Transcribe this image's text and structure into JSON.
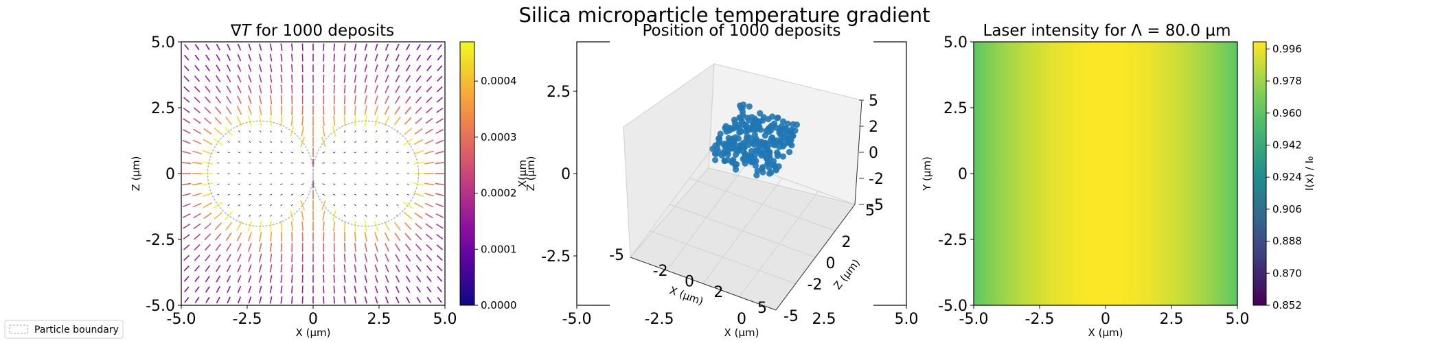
{
  "figure": {
    "title": "Silica microparticle temperature gradient",
    "legend": {
      "label": "Particle boundary",
      "placement": "lower-left"
    }
  },
  "chart_data": [
    {
      "type": "quiver",
      "title_prefix": "∇",
      "title_italic": "T",
      "title_suffix": " for 1000 deposits",
      "xlabel": "X (µm)",
      "ylabel": "Z (µm)",
      "xlim": [
        -5,
        5
      ],
      "ylim": [
        -5,
        5
      ],
      "x_ticks": [
        "-5.0",
        "-2.5",
        "0",
        "2.5",
        "5.0"
      ],
      "y_ticks": [
        "-5.0",
        "-2.5",
        "0",
        "2.5",
        "5.0"
      ],
      "particles": [
        {
          "center": [
            -2.0,
            0.0
          ],
          "radius": 2.0
        },
        {
          "center": [
            2.0,
            0.0
          ],
          "radius": 2.0
        }
      ],
      "grid_n": 25,
      "colormap": "plasma",
      "colorbar": {
        "range": [
          0.0,
          0.00047
        ],
        "ticks": [
          "0.0000",
          "0.0001",
          "0.0002",
          "0.0003",
          "0.0004"
        ]
      }
    },
    {
      "type": "scatter3d",
      "title": "Position of 1000 deposits",
      "outer_xlabel": "X (µm)",
      "outer_ylabel_a": "Z (µm)",
      "outer_ylabel_b": "X(µm",
      "outer_xlim": [
        -5,
        5
      ],
      "outer_ylim": [
        -4,
        4
      ],
      "outer_x_ticks": [
        "-5.0",
        "-2.5",
        "0",
        "2.5",
        "5.0"
      ],
      "outer_y_ticks": [
        "2.5",
        "0",
        "-2.5"
      ],
      "x_label_3d": "X (µm)",
      "z_label_3d": "Z (µm)",
      "x_ticks_3d": [
        "-5",
        "-2",
        "0",
        "2",
        "5"
      ],
      "z_ticks_3d": [
        "5",
        "2",
        "0",
        "-2",
        "-5"
      ],
      "v_ticks_3d": [
        "5",
        "2",
        "0",
        "-2",
        "-5"
      ],
      "n_points": 1000,
      "cluster_extent_um": [
        [
          -2.0,
          2.0
        ],
        [
          -2.0,
          2.0
        ],
        [
          -1.0,
          1.0
        ]
      ],
      "point_color": "#1f77b4"
    },
    {
      "type": "heatmap",
      "title": "Laser intensity for Λ = 80.0 µm",
      "xlabel": "X (µm)",
      "ylabel": "Y (µm)",
      "xlim": [
        -5,
        5
      ],
      "ylim": [
        -5,
        5
      ],
      "x_ticks": [
        "-5.0",
        "-2.5",
        "0",
        "2.5",
        "5.0"
      ],
      "y_ticks": [
        "-5.0",
        "-2.5",
        "0",
        "2.5",
        "5.0"
      ],
      "period_um": 80.0,
      "intensity_formula": "cos^2(pi*x/period)",
      "colormap": "viridis",
      "colorbar": {
        "label": "I(x) / I₀",
        "range": [
          0.852,
          1.0
        ],
        "ticks": [
          "0.996",
          "0.978",
          "0.960",
          "0.942",
          "0.924",
          "0.906",
          "0.888",
          "0.870",
          "0.852"
        ]
      }
    }
  ]
}
